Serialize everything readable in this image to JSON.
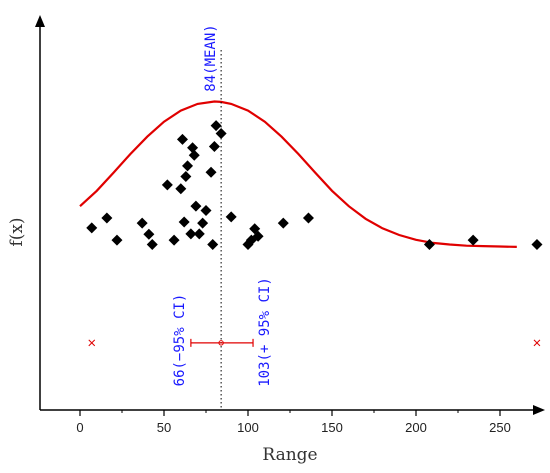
{
  "chart_data": {
    "type": "scatter",
    "xlabel": "Range",
    "ylabel": "f(x)",
    "xlim": [
      -25,
      277
    ],
    "ylim": [
      0,
      1
    ],
    "x_ticks": [
      "0",
      "50",
      "100",
      "150",
      "200",
      "250"
    ],
    "grid": false,
    "points": [
      {
        "x": 7,
        "y": 0.461
      },
      {
        "x": 16,
        "y": 0.486
      },
      {
        "x": 22,
        "y": 0.43
      },
      {
        "x": 37,
        "y": 0.473
      },
      {
        "x": 41,
        "y": 0.445
      },
      {
        "x": 43,
        "y": 0.419
      },
      {
        "x": 52,
        "y": 0.57
      },
      {
        "x": 56,
        "y": 0.43
      },
      {
        "x": 60,
        "y": 0.56
      },
      {
        "x": 61,
        "y": 0.685
      },
      {
        "x": 62,
        "y": 0.476
      },
      {
        "x": 63,
        "y": 0.591
      },
      {
        "x": 64,
        "y": 0.618
      },
      {
        "x": 66,
        "y": 0.446
      },
      {
        "x": 67,
        "y": 0.664
      },
      {
        "x": 68,
        "y": 0.645
      },
      {
        "x": 69,
        "y": 0.516
      },
      {
        "x": 71,
        "y": 0.446
      },
      {
        "x": 73,
        "y": 0.473
      },
      {
        "x": 75,
        "y": 0.505
      },
      {
        "x": 78,
        "y": 0.602
      },
      {
        "x": 79,
        "y": 0.419
      },
      {
        "x": 80,
        "y": 0.667
      },
      {
        "x": 81,
        "y": 0.72
      },
      {
        "x": 84,
        "y": 0.7
      },
      {
        "x": 90,
        "y": 0.489
      },
      {
        "x": 100,
        "y": 0.419
      },
      {
        "x": 102,
        "y": 0.43
      },
      {
        "x": 104,
        "y": 0.459
      },
      {
        "x": 106,
        "y": 0.44
      },
      {
        "x": 121,
        "y": 0.473
      },
      {
        "x": 136,
        "y": 0.486
      },
      {
        "x": 208,
        "y": 0.419
      },
      {
        "x": 234,
        "y": 0.43
      },
      {
        "x": 272,
        "y": 0.419
      }
    ],
    "curve": {
      "name": "f(x)",
      "color": "#e00000",
      "x": [
        0,
        10,
        20,
        30,
        40,
        50,
        60,
        70,
        80,
        84,
        90,
        100,
        110,
        120,
        130,
        140,
        150,
        160,
        170,
        180,
        190,
        200,
        210,
        220,
        230,
        240,
        250,
        260
      ],
      "y": [
        0.516,
        0.555,
        0.601,
        0.648,
        0.692,
        0.73,
        0.758,
        0.775,
        0.781,
        0.78,
        0.775,
        0.758,
        0.73,
        0.692,
        0.648,
        0.601,
        0.555,
        0.516,
        0.484,
        0.46,
        0.443,
        0.431,
        0.423,
        0.419,
        0.416,
        0.415,
        0.414,
        0.413
      ]
    },
    "mean": {
      "x": 84,
      "label": "84(MEAN)"
    },
    "ci": {
      "lower": {
        "x": 66,
        "label": "66(−95% CI)"
      },
      "upper": {
        "x": 103,
        "label": "103(+ 95% CI)"
      },
      "y": 0.17,
      "color": "#e00000"
    },
    "outlier_markers": [
      {
        "x": 7,
        "y": 0.17
      },
      {
        "x": 272,
        "y": 0.17
      }
    ]
  }
}
